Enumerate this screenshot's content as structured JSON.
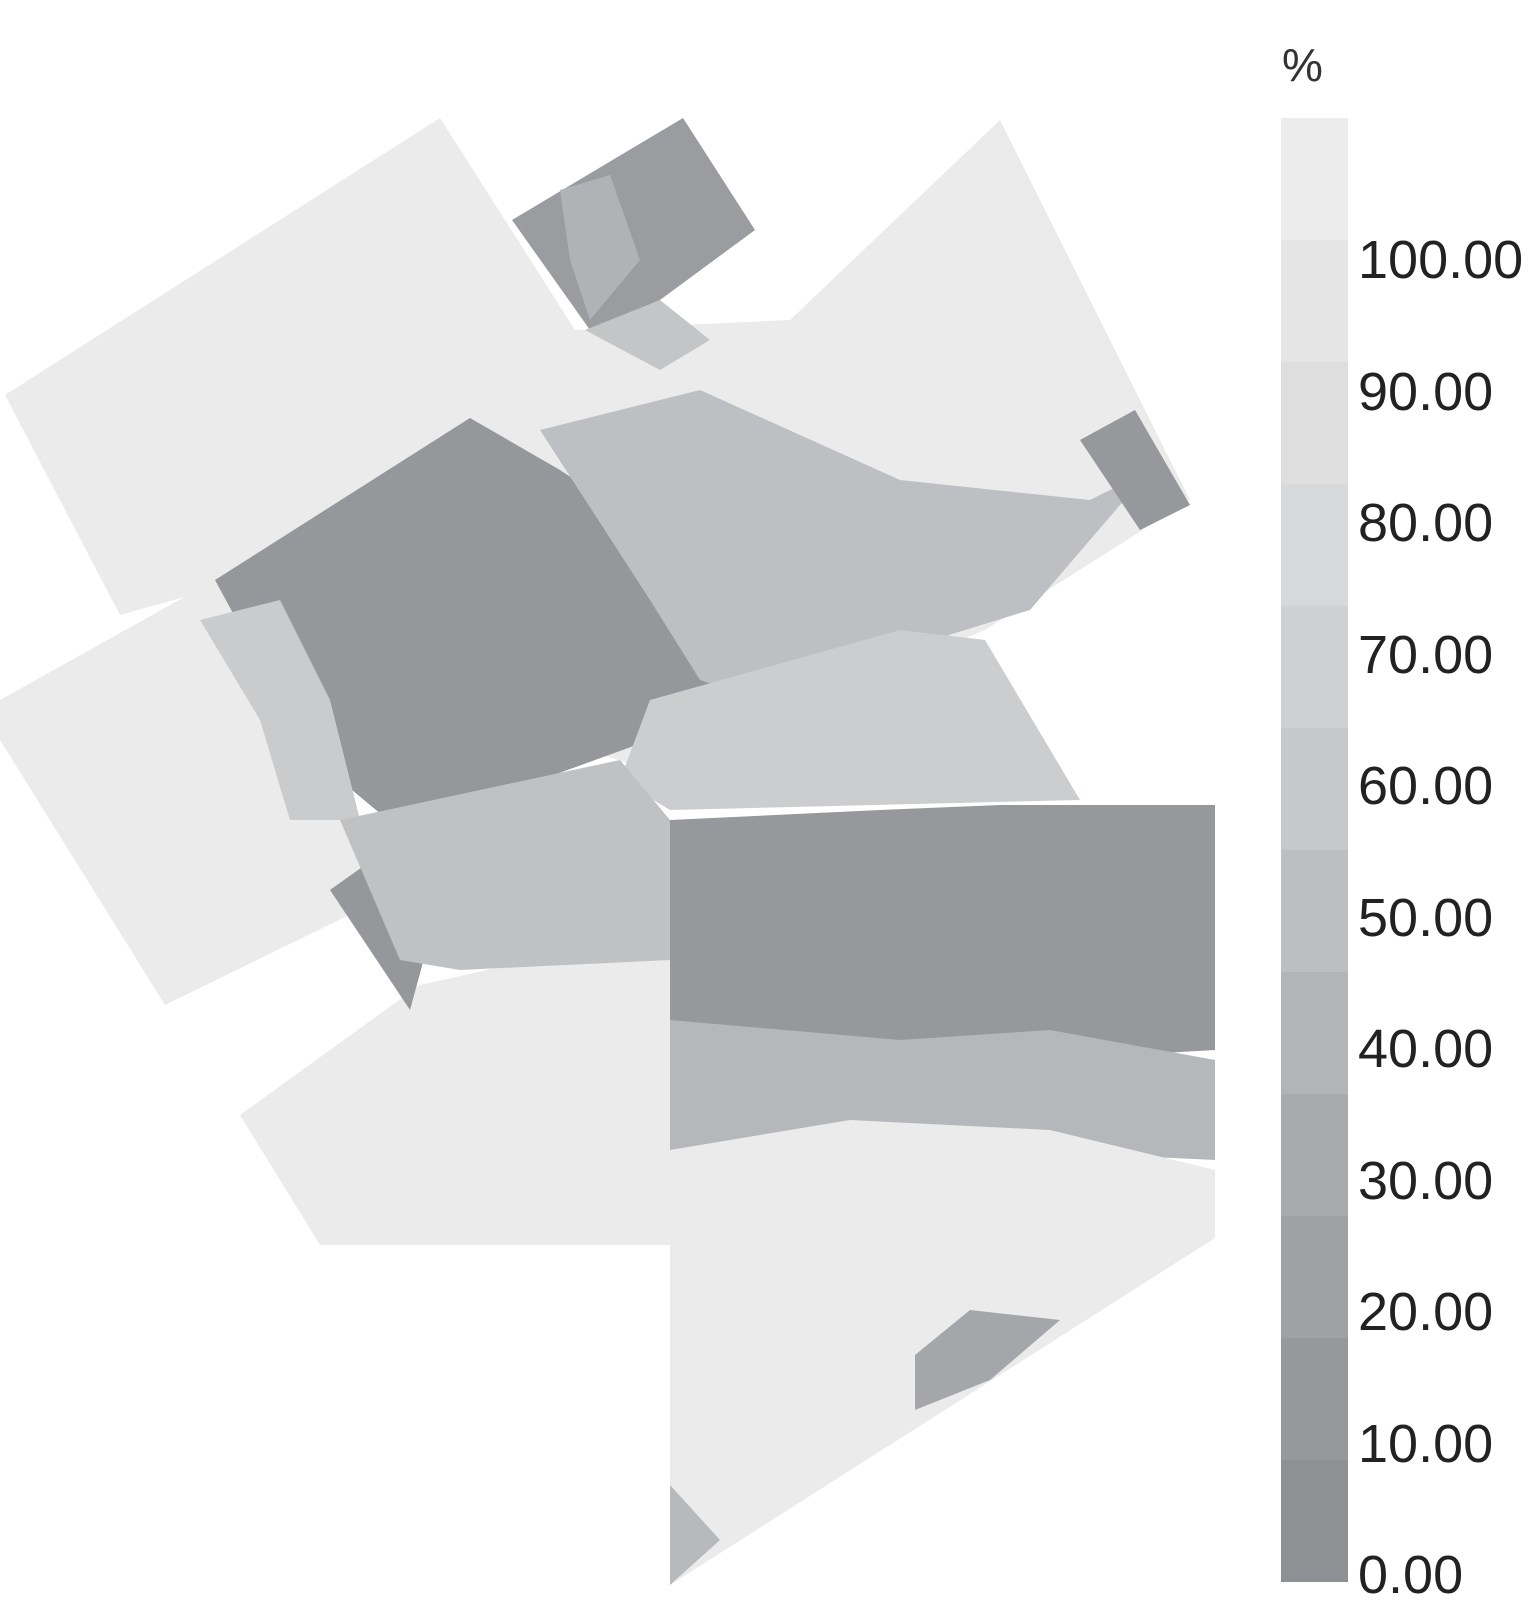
{
  "legend": {
    "title": "%",
    "ticks": [
      "100.00",
      "90.00",
      "80.00",
      "70.00",
      "60.00",
      "50.00",
      "40.00",
      "30.00",
      "20.00",
      "10.00",
      "0.00"
    ],
    "colors_top_to_bottom": [
      "#ececec",
      "#e5e5e5",
      "#dedede",
      "#d6d8d9",
      "#cfd0d2",
      "#c6c8ca",
      "#bcbec1",
      "#b2b4b7",
      "#a8aaad",
      "#9fa1a4",
      "#96989b",
      "#8e9093"
    ]
  }
}
